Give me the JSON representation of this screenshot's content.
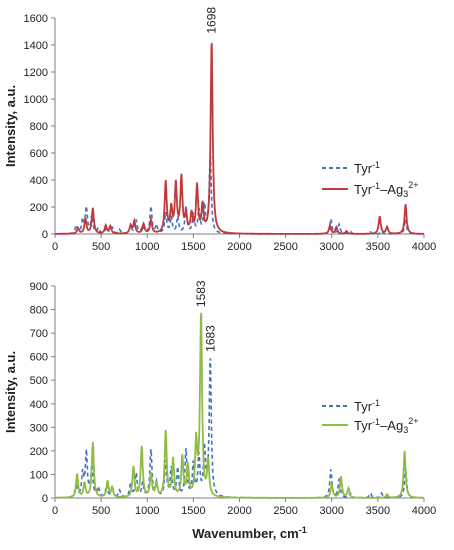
{
  "chart_data": [
    {
      "type": "line",
      "ylabel": "Intensity, a.u.",
      "xlabel": "",
      "xlim": [
        0,
        4000
      ],
      "ylim": [
        0,
        1600
      ],
      "xticks": [
        0,
        500,
        1000,
        1500,
        2000,
        2500,
        3000,
        3500,
        4000
      ],
      "yticks": [
        0,
        200,
        400,
        600,
        800,
        1000,
        1200,
        1400,
        1600
      ],
      "grid": false,
      "legend_position": "right-middle",
      "annotations": [
        {
          "text": "1698",
          "x": 1698,
          "y": 1440
        }
      ],
      "series": [
        {
          "name": "Tyr",
          "name_sup": "-1",
          "name_suffix": "",
          "style": "dashed",
          "color": "#4472c4",
          "peaks": [
            [
              230,
              60
            ],
            [
              300,
              100
            ],
            [
              340,
              190
            ],
            [
              400,
              130
            ],
            [
              470,
              40
            ],
            [
              560,
              50
            ],
            [
              620,
              45
            ],
            [
              700,
              30
            ],
            [
              820,
              60
            ],
            [
              880,
              100
            ],
            [
              950,
              60
            ],
            [
              1040,
              200
            ],
            [
              1100,
              60
            ],
            [
              1200,
              150
            ],
            [
              1260,
              120
            ],
            [
              1330,
              120
            ],
            [
              1420,
              200
            ],
            [
              1500,
              140
            ],
            [
              1560,
              170
            ],
            [
              1620,
              200
            ],
            [
              1683,
              580
            ],
            [
              2990,
              110
            ],
            [
              3080,
              70
            ],
            [
              3200,
              20
            ],
            [
              3420,
              15
            ],
            [
              3540,
              20
            ],
            [
              3800,
              110
            ]
          ]
        },
        {
          "name": "Tyr",
          "name_sup": "-1",
          "name_suffix": "–Ag",
          "name_sub": "3",
          "name_sup2": "2+",
          "style": "solid",
          "color": "#c0393b",
          "peaks": [
            [
              250,
              40
            ],
            [
              330,
              110
            ],
            [
              410,
              190
            ],
            [
              550,
              60
            ],
            [
              600,
              55
            ],
            [
              820,
              60
            ],
            [
              860,
              90
            ],
            [
              960,
              70
            ],
            [
              1040,
              100
            ],
            [
              1200,
              380
            ],
            [
              1260,
              180
            ],
            [
              1310,
              360
            ],
            [
              1370,
              410
            ],
            [
              1420,
              130
            ],
            [
              1480,
              140
            ],
            [
              1540,
              350
            ],
            [
              1600,
              200
            ],
            [
              1698,
              1440
            ],
            [
              2980,
              60
            ],
            [
              3050,
              50
            ],
            [
              3160,
              20
            ],
            [
              3520,
              130
            ],
            [
              3600,
              50
            ],
            [
              3800,
              220
            ]
          ]
        }
      ]
    },
    {
      "type": "line",
      "ylabel": "Intensity, a.u.",
      "xlabel": "Wavenumber, cm",
      "xlabel_sup": "-1",
      "xlim": [
        0,
        4000
      ],
      "ylim": [
        0,
        900
      ],
      "xticks": [
        0,
        500,
        1000,
        1500,
        2000,
        2500,
        3000,
        3500,
        4000
      ],
      "yticks": [
        0,
        100,
        200,
        300,
        400,
        500,
        600,
        700,
        800,
        900
      ],
      "grid": false,
      "legend_position": "right-middle",
      "annotations": [
        {
          "text": "1583",
          "x": 1583,
          "y": 785
        },
        {
          "text": "1683",
          "x": 1683,
          "y": 595
        }
      ],
      "series": [
        {
          "name": "Tyr",
          "name_sup": "-1",
          "name_suffix": "",
          "style": "dashed",
          "color": "#4472c4",
          "peaks": [
            [
              230,
              60
            ],
            [
              300,
              100
            ],
            [
              340,
              190
            ],
            [
              400,
              130
            ],
            [
              470,
              40
            ],
            [
              560,
              50
            ],
            [
              620,
              45
            ],
            [
              700,
              30
            ],
            [
              820,
              60
            ],
            [
              880,
              100
            ],
            [
              950,
              60
            ],
            [
              1040,
              200
            ],
            [
              1100,
              60
            ],
            [
              1200,
              150
            ],
            [
              1260,
              120
            ],
            [
              1330,
              120
            ],
            [
              1420,
              200
            ],
            [
              1500,
              140
            ],
            [
              1560,
              170
            ],
            [
              1620,
              200
            ],
            [
              1683,
              595
            ],
            [
              2990,
              120
            ],
            [
              3080,
              80
            ],
            [
              3200,
              20
            ],
            [
              3420,
              20
            ],
            [
              3540,
              20
            ],
            [
              3800,
              130
            ]
          ]
        },
        {
          "name": "Tyr",
          "name_sup": "-1",
          "name_suffix": "–Ag",
          "name_sub": "3",
          "name_sup2": "2+",
          "style": "solid",
          "color": "#8fbc45",
          "peaks": [
            [
              240,
              100
            ],
            [
              320,
              60
            ],
            [
              410,
              235
            ],
            [
              570,
              70
            ],
            [
              620,
              40
            ],
            [
              850,
              130
            ],
            [
              940,
              215
            ],
            [
              1040,
              100
            ],
            [
              1100,
              60
            ],
            [
              1200,
              280
            ],
            [
              1280,
              160
            ],
            [
              1380,
              170
            ],
            [
              1440,
              130
            ],
            [
              1530,
              230
            ],
            [
              1583,
              785
            ],
            [
              1660,
              150
            ],
            [
              3000,
              60
            ],
            [
              3100,
              90
            ],
            [
              3180,
              40
            ],
            [
              3600,
              15
            ],
            [
              3790,
              200
            ]
          ]
        }
      ]
    }
  ]
}
